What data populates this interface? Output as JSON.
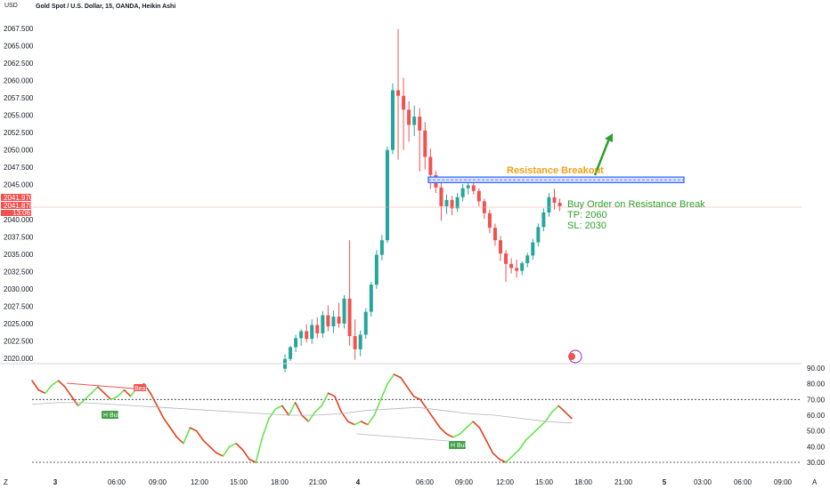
{
  "header": {
    "currency": "USD",
    "symbol_line": "Gold Spot / U.S. Dollar, 15, OANDA, Heikin Ashi"
  },
  "price_tags": {
    "top": "2041.970",
    "mid": "2041.878",
    "countdown": "13:06"
  },
  "annotations": {
    "resistance_label": "Resistance Breakout",
    "order_line1": "Buy Order on Resistance Break",
    "order_line2": "TP: 2060",
    "order_line3": "SL: 2030",
    "oscillator_labels": [
      "Bear",
      "H Bull",
      "H Bull"
    ]
  },
  "colors": {
    "bull": "#26a69a",
    "bear": "#ef5350",
    "resistance": "#2962ff",
    "arrow": "#2ca02c",
    "resistance_text": "#f0a11c",
    "osc_up": "#66e54a",
    "osc_down": "#e0421b"
  },
  "bottom_bar": {
    "left_icon": "Z",
    "right_icon": "A"
  },
  "chart_data": [
    {
      "type": "candlestick",
      "title": "Gold Spot / U.S. Dollar, 15, OANDA, Heikin Ashi",
      "ylabel": "USD",
      "ylim": [
        2019.5,
        2070.0
      ],
      "y_ticks": [
        2020.0,
        2022.5,
        2025.0,
        2027.5,
        2030.0,
        2032.5,
        2035.0,
        2037.5,
        2040.0,
        2045.0,
        2047.5,
        2050.0,
        2052.5,
        2055.0,
        2057.5,
        2060.0,
        2062.5,
        2065.0,
        2067.5
      ],
      "x_ticks": [
        "3",
        "06:00",
        "09:00",
        "12:00",
        "15:00",
        "18:00",
        "21:00",
        "4",
        "06:00",
        "09:00",
        "12:00",
        "15:00",
        "18:00",
        "21:00",
        "5",
        "03:00",
        "06:00",
        "09:00"
      ],
      "resistance_zone": [
        2045.3,
        2046.1
      ],
      "current_price": 2041.878,
      "candles": [
        {
          "o": 2018.5,
          "h": 2020.6,
          "l": 2018.0,
          "c": 2019.9
        },
        {
          "o": 2019.9,
          "h": 2021.8,
          "l": 2019.6,
          "c": 2021.6
        },
        {
          "o": 2021.6,
          "h": 2023.4,
          "l": 2020.9,
          "c": 2022.9
        },
        {
          "o": 2022.9,
          "h": 2024.2,
          "l": 2021.8,
          "c": 2023.9
        },
        {
          "o": 2023.9,
          "h": 2024.9,
          "l": 2022.3,
          "c": 2022.8
        },
        {
          "o": 2022.8,
          "h": 2025.6,
          "l": 2022.1,
          "c": 2024.8
        },
        {
          "o": 2024.8,
          "h": 2025.9,
          "l": 2022.9,
          "c": 2023.6
        },
        {
          "o": 2023.6,
          "h": 2026.8,
          "l": 2023.0,
          "c": 2026.2
        },
        {
          "o": 2026.2,
          "h": 2027.6,
          "l": 2023.9,
          "c": 2024.6
        },
        {
          "o": 2024.6,
          "h": 2026.9,
          "l": 2023.6,
          "c": 2026.0
        },
        {
          "o": 2026.0,
          "h": 2028.0,
          "l": 2024.4,
          "c": 2025.0
        },
        {
          "o": 2025.0,
          "h": 2029.1,
          "l": 2024.3,
          "c": 2028.6
        },
        {
          "o": 2028.6,
          "h": 2037.0,
          "l": 2021.8,
          "c": 2023.2
        },
        {
          "o": 2023.2,
          "h": 2025.6,
          "l": 2019.8,
          "c": 2021.3
        },
        {
          "o": 2021.3,
          "h": 2024.0,
          "l": 2020.3,
          "c": 2023.4
        },
        {
          "o": 2023.4,
          "h": 2027.2,
          "l": 2022.8,
          "c": 2026.7
        },
        {
          "o": 2026.7,
          "h": 2031.0,
          "l": 2026.0,
          "c": 2030.6
        },
        {
          "o": 2030.6,
          "h": 2035.6,
          "l": 2030.0,
          "c": 2034.9
        },
        {
          "o": 2034.9,
          "h": 2037.8,
          "l": 2034.1,
          "c": 2037.0
        },
        {
          "o": 2037.0,
          "h": 2050.5,
          "l": 2036.6,
          "c": 2050.0
        },
        {
          "o": 2050.0,
          "h": 2059.6,
          "l": 2049.4,
          "c": 2058.6
        },
        {
          "o": 2058.6,
          "h": 2067.4,
          "l": 2048.6,
          "c": 2057.8
        },
        {
          "o": 2057.8,
          "h": 2060.4,
          "l": 2050.0,
          "c": 2055.8
        },
        {
          "o": 2055.8,
          "h": 2057.0,
          "l": 2051.2,
          "c": 2053.6
        },
        {
          "o": 2053.6,
          "h": 2056.4,
          "l": 2052.0,
          "c": 2054.8
        },
        {
          "o": 2054.8,
          "h": 2056.0,
          "l": 2046.9,
          "c": 2052.8
        },
        {
          "o": 2052.8,
          "h": 2054.0,
          "l": 2047.2,
          "c": 2049.0
        },
        {
          "o": 2049.0,
          "h": 2050.2,
          "l": 2044.4,
          "c": 2046.4
        },
        {
          "o": 2046.4,
          "h": 2047.0,
          "l": 2043.8,
          "c": 2044.6
        },
        {
          "o": 2044.6,
          "h": 2045.6,
          "l": 2039.8,
          "c": 2041.9
        },
        {
          "o": 2041.9,
          "h": 2043.6,
          "l": 2040.8,
          "c": 2042.8
        },
        {
          "o": 2042.8,
          "h": 2043.4,
          "l": 2040.6,
          "c": 2041.6
        },
        {
          "o": 2041.6,
          "h": 2043.8,
          "l": 2041.1,
          "c": 2043.2
        },
        {
          "o": 2043.2,
          "h": 2045.1,
          "l": 2042.6,
          "c": 2044.5
        },
        {
          "o": 2044.5,
          "h": 2045.7,
          "l": 2043.6,
          "c": 2044.9
        },
        {
          "o": 2044.9,
          "h": 2045.5,
          "l": 2043.6,
          "c": 2044.1
        },
        {
          "o": 2044.1,
          "h": 2044.5,
          "l": 2041.9,
          "c": 2042.6
        },
        {
          "o": 2042.6,
          "h": 2043.0,
          "l": 2040.1,
          "c": 2040.9
        },
        {
          "o": 2040.9,
          "h": 2041.4,
          "l": 2038.0,
          "c": 2038.8
        },
        {
          "o": 2038.8,
          "h": 2039.4,
          "l": 2036.2,
          "c": 2037.0
        },
        {
          "o": 2037.0,
          "h": 2037.6,
          "l": 2034.0,
          "c": 2035.1
        },
        {
          "o": 2035.1,
          "h": 2035.6,
          "l": 2031.0,
          "c": 2033.6
        },
        {
          "o": 2033.6,
          "h": 2034.4,
          "l": 2032.2,
          "c": 2033.0
        },
        {
          "o": 2033.0,
          "h": 2034.2,
          "l": 2031.6,
          "c": 2032.6
        },
        {
          "o": 2032.6,
          "h": 2034.0,
          "l": 2032.0,
          "c": 2033.7
        },
        {
          "o": 2033.7,
          "h": 2035.2,
          "l": 2033.1,
          "c": 2034.8
        },
        {
          "o": 2034.8,
          "h": 2037.2,
          "l": 2034.2,
          "c": 2036.7
        },
        {
          "o": 2036.7,
          "h": 2039.4,
          "l": 2036.1,
          "c": 2038.9
        },
        {
          "o": 2038.9,
          "h": 2041.6,
          "l": 2038.3,
          "c": 2041.0
        },
        {
          "o": 2041.0,
          "h": 2043.8,
          "l": 2040.4,
          "c": 2043.2
        },
        {
          "o": 2043.2,
          "h": 2044.4,
          "l": 2041.4,
          "c": 2042.4
        },
        {
          "o": 2042.4,
          "h": 2043.0,
          "l": 2041.2,
          "c": 2041.9
        }
      ]
    },
    {
      "type": "line",
      "title": "",
      "ylim": [
        25,
        95
      ],
      "y_ticks": [
        30.0,
        40.0,
        50.0,
        60.0,
        70.0,
        80.0,
        90.0
      ],
      "reference_levels": [
        70,
        30
      ],
      "series": [
        {
          "name": "",
          "values": [
            82,
            76,
            74,
            79,
            82,
            78,
            72,
            66,
            70,
            74,
            78,
            74,
            70,
            72,
            76,
            72,
            78,
            80,
            74,
            66,
            58,
            52,
            46,
            42,
            52,
            50,
            44,
            40,
            36,
            34,
            40,
            42,
            38,
            32,
            30,
            46,
            58,
            64,
            66,
            60,
            68,
            60,
            56,
            62,
            66,
            74,
            72,
            62,
            56,
            54,
            56,
            54,
            60,
            70,
            80,
            86,
            84,
            78,
            72,
            70,
            64,
            58,
            52,
            48,
            46,
            48,
            52,
            56,
            52,
            44,
            36,
            32,
            30,
            34,
            38,
            44,
            48,
            52,
            56,
            62,
            66,
            62,
            58
          ]
        },
        {
          "name": "",
          "values": [
            67,
            68,
            68,
            67,
            66,
            65,
            64,
            63,
            62,
            61,
            60,
            60,
            61,
            63,
            64,
            65,
            63,
            61,
            60,
            58,
            56,
            55
          ]
        }
      ]
    }
  ]
}
